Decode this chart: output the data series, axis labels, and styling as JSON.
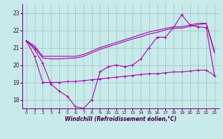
{
  "xlabel": "Windchill (Refroidissement éolien,°C)",
  "x": [
    0,
    1,
    2,
    3,
    4,
    5,
    6,
    7,
    8,
    9,
    10,
    11,
    12,
    13,
    14,
    15,
    16,
    17,
    18,
    19,
    20,
    21,
    22,
    23
  ],
  "line1_zigzag": [
    21.4,
    20.9,
    20.1,
    18.9,
    18.5,
    18.2,
    17.6,
    17.5,
    18.0,
    19.6,
    19.9,
    20.0,
    19.9,
    20.0,
    20.35,
    21.0,
    21.6,
    21.6,
    22.15,
    22.9,
    22.3,
    22.2,
    22.15,
    19.4
  ],
  "line2_smooth": [
    21.4,
    21.1,
    20.5,
    20.5,
    20.5,
    20.5,
    20.5,
    20.6,
    20.8,
    21.0,
    21.15,
    21.3,
    21.45,
    21.6,
    21.75,
    21.9,
    22.0,
    22.1,
    22.2,
    22.2,
    22.3,
    22.4,
    22.4,
    20.8
  ],
  "line3_smooth2": [
    21.4,
    21.0,
    20.4,
    20.35,
    20.35,
    20.38,
    20.4,
    20.5,
    20.7,
    20.9,
    21.05,
    21.2,
    21.35,
    21.5,
    21.62,
    21.78,
    21.88,
    22.02,
    22.12,
    22.12,
    22.22,
    22.32,
    22.38,
    20.7
  ],
  "line4_flat": [
    21.4,
    20.5,
    19.0,
    19.0,
    19.0,
    19.05,
    19.05,
    19.1,
    19.15,
    19.2,
    19.25,
    19.3,
    19.35,
    19.4,
    19.45,
    19.5,
    19.5,
    19.55,
    19.6,
    19.6,
    19.65,
    19.7,
    19.7,
    19.4
  ],
  "ylim": [
    17.5,
    23.5
  ],
  "yticks": [
    18,
    19,
    20,
    21,
    22,
    23
  ],
  "xticks": [
    0,
    1,
    2,
    3,
    4,
    5,
    6,
    7,
    8,
    9,
    10,
    11,
    12,
    13,
    14,
    15,
    16,
    17,
    18,
    19,
    20,
    21,
    22,
    23
  ],
  "line_color": "#aa00aa",
  "bg_color": "#c8eaea",
  "grid_color": "#9fbfbf"
}
